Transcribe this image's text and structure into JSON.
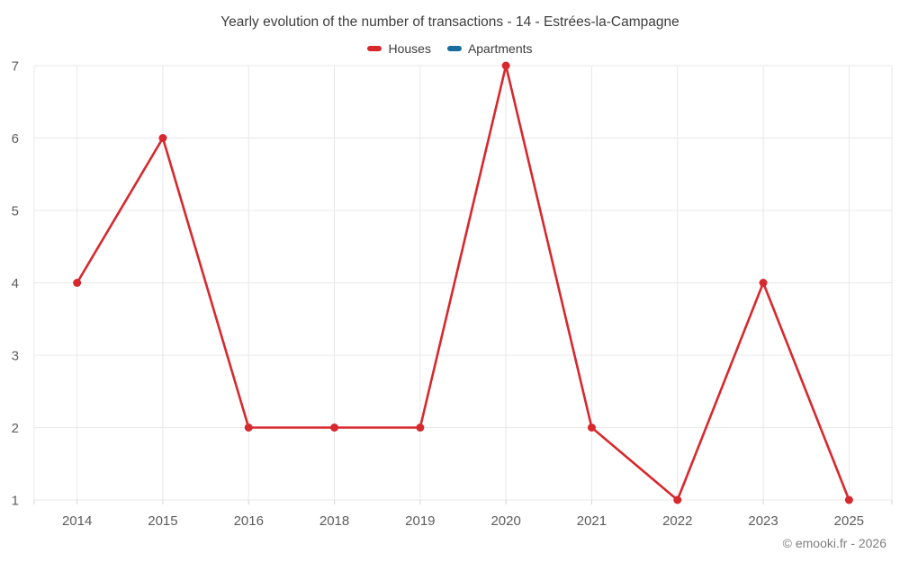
{
  "header": {
    "title": "Yearly evolution of the number of transactions - 14 - Estrées-la-Campagne"
  },
  "legend": {
    "items": [
      {
        "label": "Houses",
        "color": "#d7282e"
      },
      {
        "label": "Apartments",
        "color": "#176e9d"
      }
    ]
  },
  "footer": {
    "credit": "© emooki.fr - 2026"
  },
  "colors": {
    "houses_line": "#d7282e",
    "apartments_line": "#176e9d",
    "gridline": "#e8e8e8",
    "tick": "#d6d6d6",
    "axis_text": "#5c5c5c",
    "title_text": "#3d3d3d",
    "credit_text": "#7f7f7f",
    "background": "#ffffff"
  },
  "chart_data": {
    "type": "line",
    "title": "Yearly evolution of the number of transactions - 14 - Estrées-la-Campagne",
    "categories": [
      "2014",
      "2015",
      "2016",
      "2018",
      "2019",
      "2020",
      "2021",
      "2022",
      "2023",
      "2025"
    ],
    "series": [
      {
        "name": "Houses",
        "color": "#d7282e",
        "values": [
          4,
          6,
          2,
          2,
          2,
          7,
          2,
          1,
          4,
          1
        ]
      },
      {
        "name": "Apartments",
        "color": "#176e9d",
        "values": []
      }
    ],
    "xlabel": "",
    "ylabel": "",
    "ylim": [
      1,
      7
    ],
    "yticks": [
      1,
      2,
      3,
      4,
      5,
      6,
      7
    ],
    "grid": true,
    "legend_position": "top",
    "marker": "circle"
  }
}
